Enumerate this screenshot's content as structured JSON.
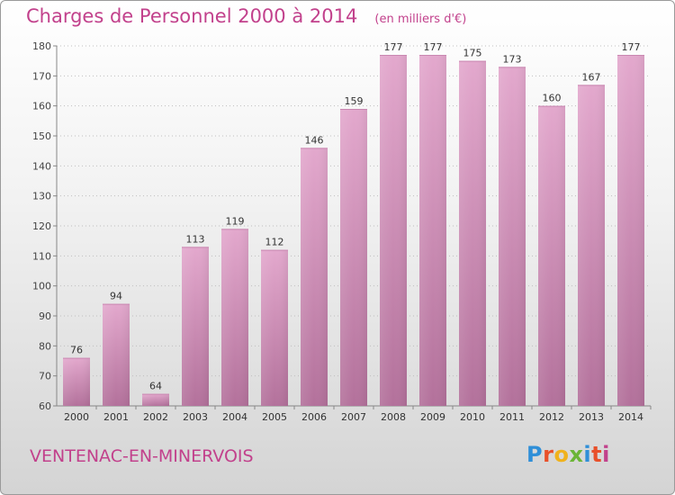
{
  "header": {
    "title": "Charges de Personnel 2000 à 2014",
    "unit_note": "(en milliers d'€)"
  },
  "footer": {
    "commune": "VENTENAC-EN-MINERVOIS",
    "brand": "Proxiti",
    "brand_colors": [
      "#2f8fd8",
      "#e8502a",
      "#f0b21c",
      "#6bb536",
      "#2f8fd8",
      "#e8502a",
      "#c2418c"
    ]
  },
  "colors": {
    "accent": "#c2418c",
    "bar_top": "#e3a8cd",
    "bar_bottom": "#b3719b",
    "grid": "#bfbfbf"
  },
  "chart_data": {
    "type": "bar",
    "title": "Charges de Personnel 2000 à 2014",
    "subtitle": "(en milliers d'€)",
    "xlabel": "",
    "ylabel": "",
    "categories": [
      "2000",
      "2001",
      "2002",
      "2003",
      "2004",
      "2005",
      "2006",
      "2007",
      "2008",
      "2009",
      "2010",
      "2011",
      "2012",
      "2013",
      "2014"
    ],
    "values": [
      76,
      94,
      64,
      113,
      119,
      112,
      146,
      159,
      177,
      177,
      175,
      173,
      160,
      167,
      177
    ],
    "ylim": [
      60,
      180
    ],
    "yticks": [
      60,
      70,
      80,
      90,
      100,
      110,
      120,
      130,
      140,
      150,
      160,
      170,
      180
    ],
    "grid": true,
    "data_labels": true
  }
}
